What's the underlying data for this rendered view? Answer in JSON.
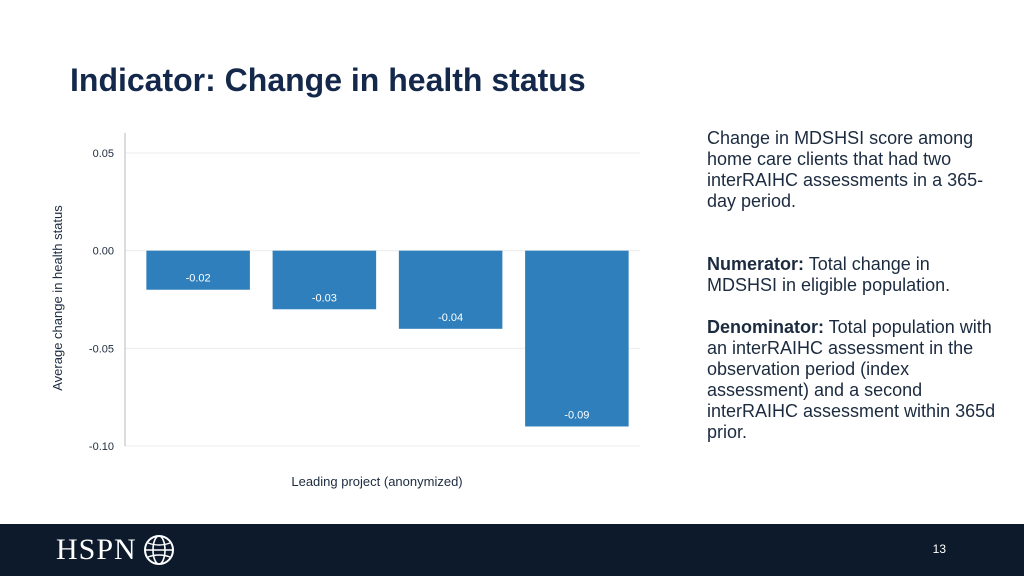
{
  "slide": {
    "title": "Indicator: Change in health status",
    "page_number": "13"
  },
  "side_panel": {
    "description": "Change in MDSHSI score among home care clients that had two interRAIHC assessments in a 365-day period.",
    "numerator_label": "Numerator:",
    "numerator_text": " Total change in MDSHSI in eligible population.",
    "denominator_label": "Denominator:",
    "denominator_text": " Total population with an interRAIHC assessment in the observation period (index assessment) and a second interRAIHC assessment within 365d prior."
  },
  "footer": {
    "logo_text": "HSPN",
    "logo_icon": "globe-icon",
    "background": "#0c1a2c"
  },
  "chart_data": {
    "type": "bar",
    "title": "",
    "xlabel": "Leading project (anonymized)",
    "ylabel": "Average change in health status",
    "categories": [
      "",
      "",
      "",
      ""
    ],
    "values": [
      -0.02,
      -0.03,
      -0.04,
      -0.09
    ],
    "data_labels": [
      "-0.02",
      "-0.03",
      "-0.04",
      "-0.09"
    ],
    "ylim": [
      -0.1,
      0.05
    ],
    "yticks": [
      0.05,
      0.0,
      -0.05,
      -0.1
    ],
    "ytick_labels": [
      "0.05",
      "0.00",
      "-0.05",
      "-0.10"
    ],
    "grid": true,
    "legend": "none",
    "bar_color": "#2e7fbb"
  }
}
